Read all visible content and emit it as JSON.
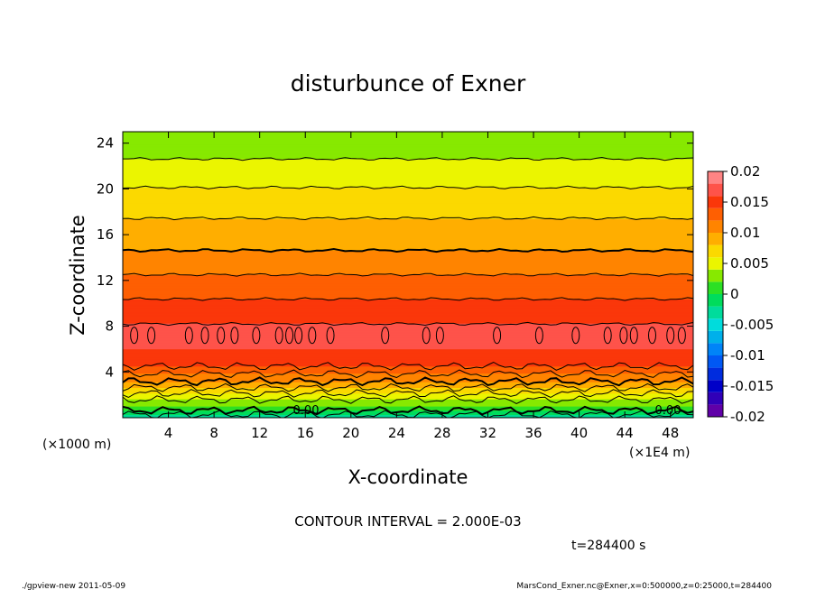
{
  "chart_data": {
    "type": "contour",
    "title": "disturbunce of Exner",
    "xlabel": "X-coordinate",
    "ylabel": "Z-coordinate",
    "x_ticks": [
      "4",
      "8",
      "12",
      "16",
      "20",
      "24",
      "28",
      "32",
      "36",
      "40",
      "44",
      "48"
    ],
    "x_tick_values": [
      4,
      8,
      12,
      16,
      20,
      24,
      28,
      32,
      36,
      40,
      44,
      48
    ],
    "y_ticks": [
      "4",
      "8",
      "12",
      "16",
      "20",
      "24"
    ],
    "y_tick_values": [
      4,
      8,
      12,
      16,
      20,
      24
    ],
    "xlim": [
      0,
      50
    ],
    "ylim": [
      0,
      25
    ],
    "x_unit": "(×1E4 m)",
    "y_unit": "(×1000 m)",
    "colorbar": {
      "tick_labels": [
        "0.02",
        "0.015",
        "0.01",
        "0.005",
        "0",
        "-0.005",
        "-0.01",
        "-0.015",
        "-0.02"
      ],
      "tick_values": [
        0.02,
        0.015,
        0.01,
        0.005,
        0,
        -0.005,
        -0.01,
        -0.015,
        -0.02
      ],
      "range": [
        -0.02,
        0.02
      ],
      "interval": 0.002
    },
    "contour_interval_text": "CONTOUR INTERVAL = 2.000E-03",
    "contour_labels": [
      "0.00",
      "0.00"
    ],
    "profile": {
      "z": [
        0,
        1,
        2,
        3,
        4,
        5,
        6,
        7,
        8,
        9,
        10,
        11,
        12,
        13,
        14,
        15,
        16,
        17,
        18,
        19,
        20,
        21,
        22,
        23,
        24,
        25
      ],
      "value": [
        -0.0035,
        0.002,
        0.0055,
        0.0095,
        0.0125,
        0.0155,
        0.016,
        0.0165,
        0.0162,
        0.0152,
        0.0143,
        0.0135,
        0.0125,
        0.0115,
        0.0105,
        0.0097,
        0.009,
        0.0083,
        0.0076,
        0.0069,
        0.0061,
        0.0053,
        0.0045,
        0.0037,
        0.0031,
        0.0026
      ]
    },
    "grid": false
  },
  "time_label": "t=284400 s",
  "footer": {
    "left": "./gpview-new   2011-05-09",
    "right": "MarsCond_Exner.nc@Exner,x=0:500000,z=0:25000,t=284400"
  }
}
